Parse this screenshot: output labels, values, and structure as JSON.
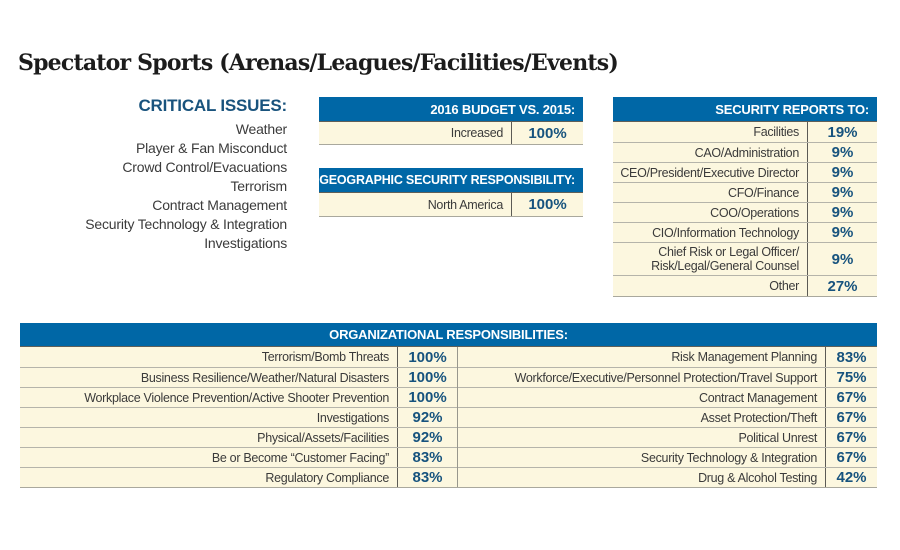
{
  "page": {
    "title": "Spectator Sports (Arenas/Leagues/Facilities/Events)"
  },
  "colors": {
    "header_blue": "#0067a6",
    "value_blue": "#17537e",
    "heading_blue": "#19537d",
    "row_cream": "#fcf7df",
    "text_dark": "#3b3b3b"
  },
  "critical_issues": {
    "heading": "CRITICAL ISSUES:",
    "items": [
      "Weather",
      "Player & Fan Misconduct",
      "Crowd Control/Evacuations",
      "Terrorism",
      "Contract Management",
      "Security Technology & Integration",
      "Investigations"
    ]
  },
  "budget": {
    "heading": "2016 BUDGET VS. 2015:",
    "rows": [
      {
        "label": "Increased",
        "value": "100%"
      }
    ]
  },
  "geographic": {
    "heading": "GEOGRAPHIC SECURITY RESPONSIBILITY:",
    "rows": [
      {
        "label": "North America",
        "value": "100%"
      }
    ]
  },
  "security_reports": {
    "heading": "SECURITY REPORTS TO:",
    "rows": [
      {
        "label": "Facilities",
        "value": "19%"
      },
      {
        "label": "CAO/Administration",
        "value": "9%"
      },
      {
        "label": "CEO/President/Executive Director",
        "value": "9%"
      },
      {
        "label": "CFO/Finance",
        "value": "9%"
      },
      {
        "label": "COO/Operations",
        "value": "9%"
      },
      {
        "label": "CIO/Information Technology",
        "value": "9%"
      },
      {
        "label": "Chief Risk or Legal Officer/\nRisk/Legal/General Counsel",
        "value": "9%"
      },
      {
        "label": "Other",
        "value": "27%"
      }
    ]
  },
  "org_responsibilities": {
    "heading": "ORGANIZATIONAL RESPONSIBILITIES:",
    "left_rows": [
      {
        "label": "Terrorism/Bomb Threats",
        "value": "100%"
      },
      {
        "label": "Business Resilience/Weather/Natural Disasters",
        "value": "100%"
      },
      {
        "label": "Workplace Violence Prevention/Active Shooter Prevention",
        "value": "100%"
      },
      {
        "label": "Investigations",
        "value": "92%"
      },
      {
        "label": "Physical/Assets/Facilities",
        "value": "92%"
      },
      {
        "label": "Be or Become “Customer Facing”",
        "value": "83%"
      },
      {
        "label": "Regulatory Compliance",
        "value": "83%"
      }
    ],
    "right_rows": [
      {
        "label": "Risk Management Planning",
        "value": "83%"
      },
      {
        "label": "Workforce/Executive/Personnel Protection/Travel Support",
        "value": "75%"
      },
      {
        "label": "Contract Management",
        "value": "67%"
      },
      {
        "label": "Asset Protection/Theft",
        "value": "67%"
      },
      {
        "label": "Political Unrest",
        "value": "67%"
      },
      {
        "label": "Security Technology & Integration",
        "value": "67%"
      },
      {
        "label": "Drug & Alcohol Testing",
        "value": "42%"
      }
    ]
  }
}
